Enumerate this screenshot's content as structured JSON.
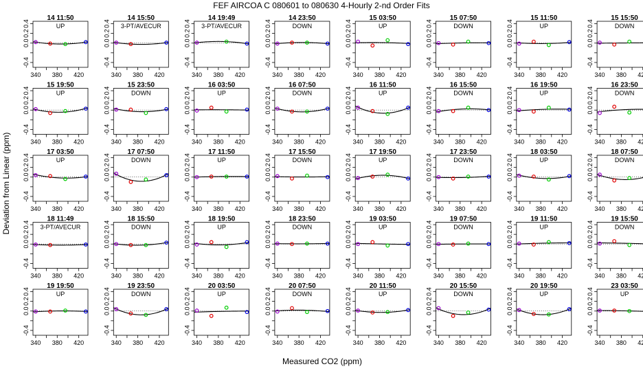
{
  "chart_data": {
    "type": "scatter",
    "title": "FEF   AIRCOA C   080601 to 080630   4-Hourly 2-nd Order Fits",
    "xlabel": "Measured CO2 (ppm)",
    "ylabel": "Deviation from Linear (ppm)",
    "xlim": [
      335,
      437
    ],
    "ylim": [
      -0.5,
      0.45
    ],
    "x_ticks": [
      340,
      360,
      380,
      400,
      420
    ],
    "x_tick_labels": [
      "340",
      "380",
      "420"
    ],
    "y_ticks": [
      -0.4,
      -0.2,
      0.0,
      0.2,
      0.4
    ],
    "y_tick_labels": [
      "-0.4",
      "0.0",
      "0.2",
      "0.4"
    ],
    "grid": false,
    "point_colors": {
      "low_standard": "#9900cc",
      "standard_2": "#e00000",
      "standard_3": "#00cc00",
      "high_standard": "#0000e0",
      "fit_curve": "#000000"
    },
    "standard_x": [
      340,
      367,
      395,
      433
    ],
    "panels": [
      {
        "title": "14 11:50",
        "label": "UP",
        "y": [
          0.02,
          -0.01,
          -0.02,
          0.02
        ]
      },
      {
        "title": "14 15:50",
        "label": "3-PT/AVECUR",
        "y": [
          0.01,
          -0.02,
          null,
          0.01
        ]
      },
      {
        "title": "14 19:49",
        "label": "3-PT/AVECUR",
        "y": [
          0.01,
          null,
          0.03,
          -0.01
        ]
      },
      {
        "title": "14 23:50",
        "label": "DOWN",
        "y": [
          -0.01,
          0.01,
          0.01,
          -0.01
        ]
      },
      {
        "title": "15 03:50",
        "label": "UP",
        "y": [
          0.03,
          -0.05,
          0.06,
          -0.02
        ]
      },
      {
        "title": "15 07:50",
        "label": "DOWN",
        "y": [
          0.0,
          -0.03,
          0.03,
          0.0
        ]
      },
      {
        "title": "15 11:50",
        "label": "UP",
        "y": [
          -0.01,
          0.03,
          -0.04,
          0.02
        ]
      },
      {
        "title": "15 15:50",
        "label": "DOWN",
        "y": [
          0.01,
          -0.03,
          0.03,
          0.0
        ]
      },
      {
        "title": "15 19:50",
        "label": "UP",
        "y": [
          0.02,
          -0.06,
          -0.02,
          0.03
        ]
      },
      {
        "title": "15 23:50",
        "label": "DOWN",
        "y": [
          0.01,
          0.01,
          -0.06,
          0.02
        ]
      },
      {
        "title": "16 03:50",
        "label": "UP",
        "y": [
          -0.01,
          0.05,
          -0.03,
          0.01
        ]
      },
      {
        "title": "16 07:50",
        "label": "DOWN",
        "y": [
          0.03,
          -0.03,
          -0.03,
          0.03
        ]
      },
      {
        "title": "16 11:50",
        "label": "UP",
        "y": [
          0.05,
          -0.02,
          -0.08,
          0.05
        ]
      },
      {
        "title": "16 15:50",
        "label": "DOWN",
        "y": [
          -0.02,
          -0.02,
          0.05,
          0.0
        ]
      },
      {
        "title": "16 19:50",
        "label": "UP",
        "y": [
          0.0,
          -0.03,
          0.05,
          0.01
        ]
      },
      {
        "title": "16 23:50",
        "label": "DOWN",
        "y": [
          -0.06,
          0.07,
          -0.05,
          0.03
        ]
      },
      {
        "title": "17 03:50",
        "label": "UP",
        "y": [
          0.04,
          0.02,
          -0.04,
          0.01
        ]
      },
      {
        "title": "17 07:50",
        "label": "DOWN",
        "y": [
          0.07,
          -0.1,
          -0.05,
          0.04
        ]
      },
      {
        "title": "17 11:50",
        "label": "UP",
        "y": [
          0.0,
          0.01,
          0.01,
          0.01
        ]
      },
      {
        "title": "17 15:50",
        "label": "DOWN",
        "y": [
          0.02,
          -0.03,
          0.03,
          0.0
        ]
      },
      {
        "title": "17 19:50",
        "label": "UP",
        "y": [
          -0.02,
          0.01,
          0.05,
          -0.03
        ]
      },
      {
        "title": "17 23:50",
        "label": "DOWN",
        "y": [
          0.0,
          -0.03,
          0.01,
          0.01
        ]
      },
      {
        "title": "18 03:50",
        "label": "UP",
        "y": [
          0.03,
          0.01,
          -0.05,
          0.02
        ]
      },
      {
        "title": "18 07:50",
        "label": "DOWN",
        "y": [
          0.05,
          -0.07,
          -0.02,
          0.02
        ]
      },
      {
        "title": "18 11:49",
        "label": "3-PT/AVECUR",
        "y": [
          -0.01,
          -0.02,
          null,
          -0.01
        ]
      },
      {
        "title": "18 15:50",
        "label": "DOWN",
        "y": [
          0.0,
          -0.02,
          -0.02,
          0.03
        ]
      },
      {
        "title": "18 19:50",
        "label": "UP",
        "y": [
          -0.01,
          0.04,
          -0.06,
          0.04
        ]
      },
      {
        "title": "18 23:50",
        "label": "DOWN",
        "y": [
          0.01,
          0.0,
          0.01,
          0.01
        ]
      },
      {
        "title": "19 03:50",
        "label": "UP",
        "y": [
          0.0,
          0.04,
          -0.03,
          0.0
        ]
      },
      {
        "title": "19 07:50",
        "label": "DOWN",
        "y": [
          0.0,
          -0.01,
          0.01,
          0.0
        ]
      },
      {
        "title": "19 11:50",
        "label": "UP",
        "y": [
          0.01,
          -0.01,
          0.04,
          0.02
        ]
      },
      {
        "title": "19 15:50",
        "label": "DOWN",
        "y": [
          0.01,
          0.06,
          -0.02,
          0.01
        ]
      },
      {
        "title": "19 19:50",
        "label": "UP",
        "y": [
          -0.01,
          -0.01,
          0.01,
          -0.01
        ]
      },
      {
        "title": "19 23:50",
        "label": "DOWN",
        "y": [
          0.04,
          -0.05,
          -0.08,
          0.04
        ]
      },
      {
        "title": "20 03:50",
        "label": "UP",
        "y": [
          0.01,
          -0.1,
          0.07,
          -0.02
        ]
      },
      {
        "title": "20 07:50",
        "label": "DOWN",
        "y": [
          -0.01,
          0.06,
          -0.02,
          0.0
        ]
      },
      {
        "title": "20 11:50",
        "label": "UP",
        "y": [
          0.01,
          -0.03,
          -0.02,
          0.02
        ]
      },
      {
        "title": "20 15:50",
        "label": "DOWN",
        "y": [
          0.06,
          -0.1,
          -0.03,
          0.03
        ]
      },
      {
        "title": "20 19:50",
        "label": "UP",
        "y": [
          0.02,
          -0.06,
          -0.07,
          0.04
        ]
      },
      {
        "title": "23 03:50",
        "label": "UP",
        "y": [
          0.01,
          0.01,
          0.0,
          -0.01
        ]
      }
    ]
  }
}
